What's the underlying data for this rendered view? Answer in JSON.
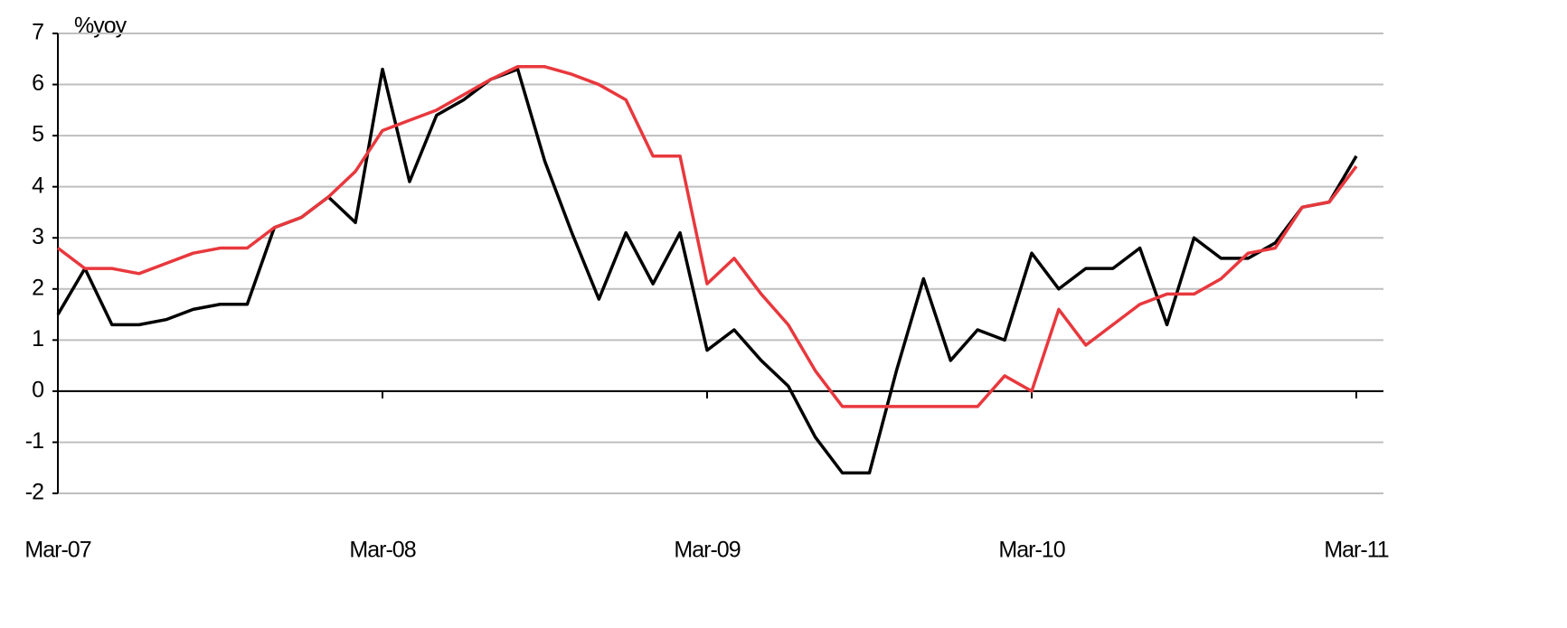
{
  "chart_data": {
    "type": "line",
    "y_label": "%yoy",
    "categories": [
      "Mar-07",
      null,
      null,
      null,
      null,
      null,
      null,
      null,
      null,
      null,
      null,
      null,
      "Mar-08",
      null,
      null,
      null,
      null,
      null,
      null,
      null,
      null,
      null,
      null,
      null,
      "Mar-09",
      null,
      null,
      null,
      null,
      null,
      null,
      null,
      null,
      null,
      null,
      null,
      "Mar-10",
      null,
      null,
      null,
      null,
      null,
      null,
      null,
      null,
      null,
      null,
      null,
      "Mar-11"
    ],
    "series": [
      {
        "color": "#000000",
        "values": [
          1.5,
          2.4,
          1.3,
          1.3,
          1.4,
          1.6,
          1.7,
          1.7,
          3.2,
          3.4,
          3.8,
          3.3,
          6.3,
          4.1,
          5.4,
          5.7,
          6.1,
          6.3,
          4.5,
          3.1,
          1.8,
          3.1,
          2.1,
          3.1,
          0.8,
          1.2,
          0.6,
          0.1,
          -0.9,
          -1.6,
          -1.6,
          0.4,
          2.2,
          0.6,
          1.2,
          1.0,
          2.7,
          2.0,
          2.4,
          2.4,
          2.8,
          1.3,
          3.0,
          2.6,
          2.6,
          2.9,
          3.6,
          3.7,
          4.6
        ]
      },
      {
        "color": "#e8383d",
        "values": [
          2.8,
          2.4,
          2.4,
          2.3,
          2.5,
          2.7,
          2.8,
          2.8,
          3.2,
          3.4,
          3.8,
          4.3,
          5.1,
          5.3,
          5.5,
          5.8,
          6.1,
          6.35,
          6.35,
          6.2,
          6.0,
          5.7,
          4.6,
          4.6,
          2.1,
          2.6,
          1.9,
          1.3,
          0.4,
          -0.3,
          -0.3,
          -0.3,
          -0.3,
          -0.3,
          -0.3,
          0.3,
          0.0,
          1.6,
          0.9,
          1.3,
          1.7,
          1.9,
          1.9,
          2.2,
          2.7,
          2.8,
          3.6,
          3.7,
          4.4
        ]
      }
    ],
    "ylim": [
      -2,
      7
    ],
    "yticks": [
      -2,
      -1,
      0,
      1,
      2,
      3,
      4,
      5,
      6,
      7
    ],
    "grid": true
  }
}
